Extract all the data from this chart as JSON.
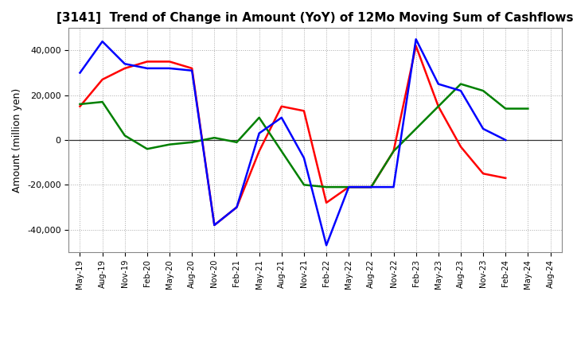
{
  "title": "[3141]  Trend of Change in Amount (YoY) of 12Mo Moving Sum of Cashflows",
  "ylabel": "Amount (million yen)",
  "x_labels": [
    "May-19",
    "Aug-19",
    "Nov-19",
    "Feb-20",
    "May-20",
    "Aug-20",
    "Nov-20",
    "Feb-21",
    "May-21",
    "Aug-21",
    "Nov-21",
    "Feb-22",
    "May-22",
    "Aug-22",
    "Nov-22",
    "Feb-23",
    "May-23",
    "Aug-23",
    "Nov-23",
    "Feb-24",
    "May-24",
    "Aug-24"
  ],
  "operating": [
    15000,
    27000,
    32000,
    35000,
    35000,
    32000,
    -38000,
    -30000,
    -5000,
    15000,
    13000,
    -28000,
    -21000,
    -21000,
    -5000,
    42000,
    15000,
    -3000,
    -15000,
    -17000,
    null,
    null
  ],
  "investing": [
    16000,
    17000,
    2000,
    -4000,
    -2000,
    -1000,
    1000,
    -1000,
    10000,
    -5000,
    -20000,
    -21000,
    -21000,
    -21000,
    -5000,
    5000,
    15000,
    25000,
    22000,
    14000,
    14000,
    null
  ],
  "free": [
    30000,
    44000,
    34000,
    32000,
    32000,
    31000,
    -38000,
    -30000,
    3000,
    10000,
    -8000,
    -47000,
    -21000,
    -21000,
    -21000,
    45000,
    25000,
    22000,
    5000,
    0,
    null,
    null
  ],
  "ylim": [
    -50000,
    50000
  ],
  "yticks": [
    -40000,
    -20000,
    0,
    20000,
    40000
  ],
  "operating_color": "#ff0000",
  "investing_color": "#008000",
  "free_color": "#0000ff",
  "bg_color": "#ffffff",
  "grid_color": "#aaaaaa",
  "linewidth": 1.8
}
